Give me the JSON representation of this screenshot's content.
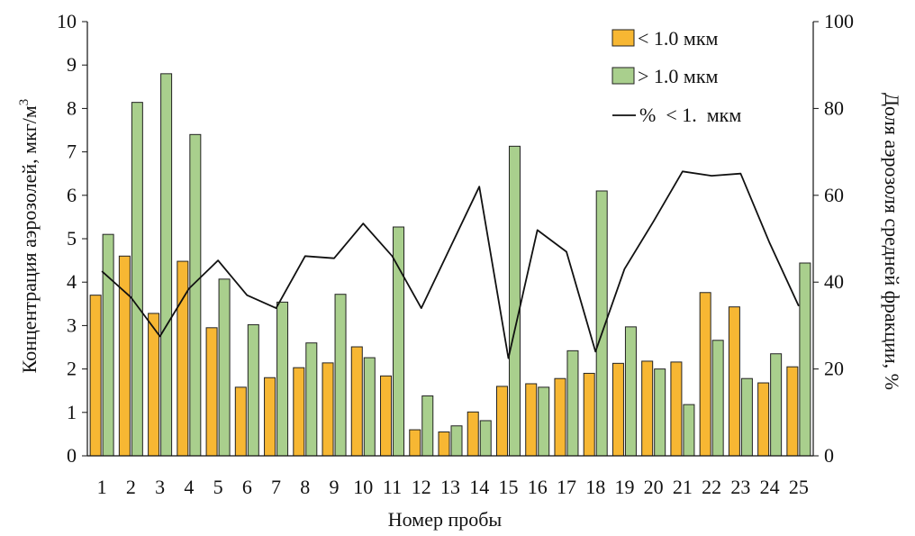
{
  "chart_data": {
    "type": "bar",
    "categories": [
      "1",
      "2",
      "3",
      "4",
      "5",
      "6",
      "7",
      "8",
      "9",
      "10",
      "11",
      "12",
      "13",
      "14",
      "15",
      "16",
      "17",
      "18",
      "19",
      "20",
      "21",
      "22",
      "23",
      "24",
      "25"
    ],
    "series": [
      {
        "name": "< 1.0 мкм",
        "axis": "left",
        "kind": "bar",
        "color": "#f7b733",
        "values": [
          3.7,
          4.6,
          3.28,
          4.48,
          2.95,
          1.58,
          1.8,
          2.03,
          2.14,
          2.51,
          1.84,
          0.6,
          0.55,
          1.01,
          1.6,
          1.66,
          1.78,
          1.9,
          2.13,
          2.18,
          2.16,
          3.76,
          3.43,
          1.68,
          2.05
        ]
      },
      {
        "name": "> 1.0 мкм",
        "axis": "left",
        "kind": "bar",
        "color": "#a9cf8d",
        "values": [
          5.1,
          8.14,
          8.8,
          7.4,
          4.07,
          3.02,
          3.54,
          2.6,
          3.72,
          2.26,
          5.27,
          1.38,
          0.69,
          0.81,
          7.13,
          1.58,
          2.42,
          6.1,
          2.97,
          2.0,
          1.18,
          2.66,
          1.78,
          2.35,
          4.44
        ]
      },
      {
        "name": "%  < 1.  мкм",
        "axis": "right",
        "kind": "line",
        "color": "#111111",
        "values": [
          42.5,
          36.5,
          27.5,
          38.5,
          45.0,
          37.0,
          34.0,
          46.0,
          45.5,
          53.5,
          46.0,
          34.0,
          48.0,
          62.0,
          22.5,
          52.0,
          47.0,
          24.0,
          43.0,
          54.0,
          65.5,
          64.5,
          65.0,
          49.0,
          34.5
        ]
      }
    ],
    "ylabel": "Концентрация аэрозолей, мкг/м",
    "ylabel_sup": "3",
    "y2label": "Доля аэрозоля средней фракции, %",
    "xlabel": "Номер пробы",
    "ylim": [
      0,
      10
    ],
    "y2lim": [
      0,
      100
    ],
    "yticks": [
      "0",
      "1",
      "2",
      "3",
      "4",
      "5",
      "6",
      "7",
      "8",
      "9",
      "10"
    ],
    "y2ticks": [
      "0",
      "20",
      "40",
      "60",
      "80",
      "100"
    ],
    "grid": false,
    "legend_position": "top-right"
  }
}
